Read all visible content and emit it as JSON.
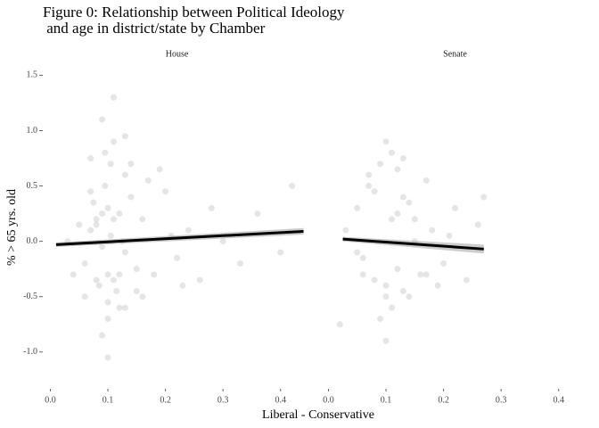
{
  "title": [
    "Figure 0: Relationship between Political Ideology",
    " and age in district/state by Chamber"
  ],
  "xlabel": "Liberal - Conservative",
  "ylabel": "% > 65 yrs. old",
  "chart_data": [
    {
      "type": "scatter",
      "title": "House",
      "color": "#b5b5b5",
      "x": [
        0.08,
        0.09,
        0.1,
        0.11,
        0.12,
        0.07,
        0.085,
        0.095,
        0.105,
        0.115,
        0.125,
        0.13,
        0.06,
        0.075,
        0.1,
        0.11,
        0.09,
        0.12,
        0.14,
        0.15,
        0.08,
        0.1,
        0.095,
        0.105,
        0.13,
        0.16,
        0.17,
        0.18,
        0.2,
        0.22,
        0.24,
        0.26,
        0.28,
        0.3,
        0.33,
        0.36,
        0.4,
        0.42,
        0.05,
        0.04,
        0.03,
        0.06,
        0.07,
        0.09,
        0.11,
        0.13,
        0.15,
        0.19,
        0.21,
        0.23,
        0.1,
        0.12,
        0.08,
        0.14,
        0.16,
        0.09,
        0.11,
        0.1,
        0.07,
        0.13
      ],
      "y": [
        0.2,
        0.25,
        0.3,
        -0.35,
        -0.3,
        0.1,
        -0.4,
        0.5,
        0.7,
        -0.45,
        0.0,
        0.6,
        -0.2,
        0.35,
        -0.55,
        0.9,
        1.1,
        -0.6,
        0.4,
        -0.25,
        0.15,
        -0.7,
        0.8,
        0.05,
        -0.1,
        0.2,
        0.55,
        -0.3,
        0.45,
        -0.15,
        0.1,
        -0.35,
        0.3,
        0.0,
        -0.2,
        0.25,
        -0.1,
        0.5,
        0.15,
        -0.3,
        0.0,
        -0.5,
        0.75,
        -0.85,
        1.3,
        0.95,
        -0.45,
        0.65,
        0.05,
        -0.4,
        -0.3,
        0.25,
        -0.35,
        0.7,
        -0.5,
        -0.05,
        0.2,
        -1.05,
        0.45,
        -0.6
      ],
      "fit": {
        "x": [
          0.01,
          0.44
        ],
        "y": [
          -0.03,
          0.09
        ],
        "ymin": [
          -0.05,
          0.06
        ],
        "ymax": [
          -0.01,
          0.12
        ]
      },
      "xlim": [
        -0.01,
        0.45
      ],
      "xticks": [
        {
          "value": 0,
          "label": "0.0"
        },
        0.1,
        0.2,
        0.3,
        0.4
      ],
      "ylim": [
        -1.3,
        1.6
      ],
      "yticks": [
        {
          "value": 1.5,
          "label": "1.5"
        },
        {
          "value": 1,
          "label": "1.0"
        },
        {
          "value": 0.5,
          "label": "0.5"
        },
        {
          "value": 0,
          "label": "0.0"
        },
        {
          "value": -0.5,
          "label": "-0.5"
        },
        {
          "value": -1,
          "label": "-1.0"
        }
      ]
    },
    {
      "type": "scatter",
      "title": "Senate",
      "color": "#b5b5b5",
      "x": [
        0.05,
        0.06,
        0.07,
        0.08,
        0.09,
        0.1,
        0.11,
        0.12,
        0.13,
        0.14,
        0.15,
        0.16,
        0.17,
        0.18,
        0.2,
        0.22,
        0.24,
        0.26,
        0.27,
        0.02,
        0.03,
        0.05,
        0.07,
        0.09,
        0.1,
        0.11,
        0.12,
        0.13,
        0.15,
        0.17,
        0.08,
        0.1,
        0.12,
        0.14,
        0.19,
        0.21,
        0.06,
        0.11,
        0.1,
        0.13
      ],
      "y": [
        0.3,
        -0.3,
        0.5,
        -0.35,
        0.7,
        -0.4,
        0.8,
        -0.25,
        0.4,
        -0.5,
        0.2,
        -0.3,
        0.55,
        0.1,
        -0.2,
        0.3,
        -0.35,
        0.15,
        0.4,
        -0.75,
        0.1,
        -0.1,
        0.6,
        -0.7,
        0.9,
        -0.6,
        0.25,
        -0.45,
        0.0,
        -0.3,
        0.45,
        -0.9,
        0.65,
        0.35,
        -0.4,
        0.05,
        -0.15,
        0.2,
        -0.5,
        0.75
      ],
      "fit": {
        "x": [
          0.025,
          0.27
        ],
        "y": [
          0.02,
          -0.07
        ],
        "ymin": [
          0.0,
          -0.11
        ],
        "ymax": [
          0.04,
          -0.03
        ]
      },
      "xlim": [
        -0.01,
        0.45
      ],
      "xticks": [
        {
          "value": 0,
          "label": "0.0"
        },
        0.1,
        0.2,
        0.3,
        0.4
      ],
      "ylim": [
        -1.3,
        1.6
      ]
    }
  ]
}
